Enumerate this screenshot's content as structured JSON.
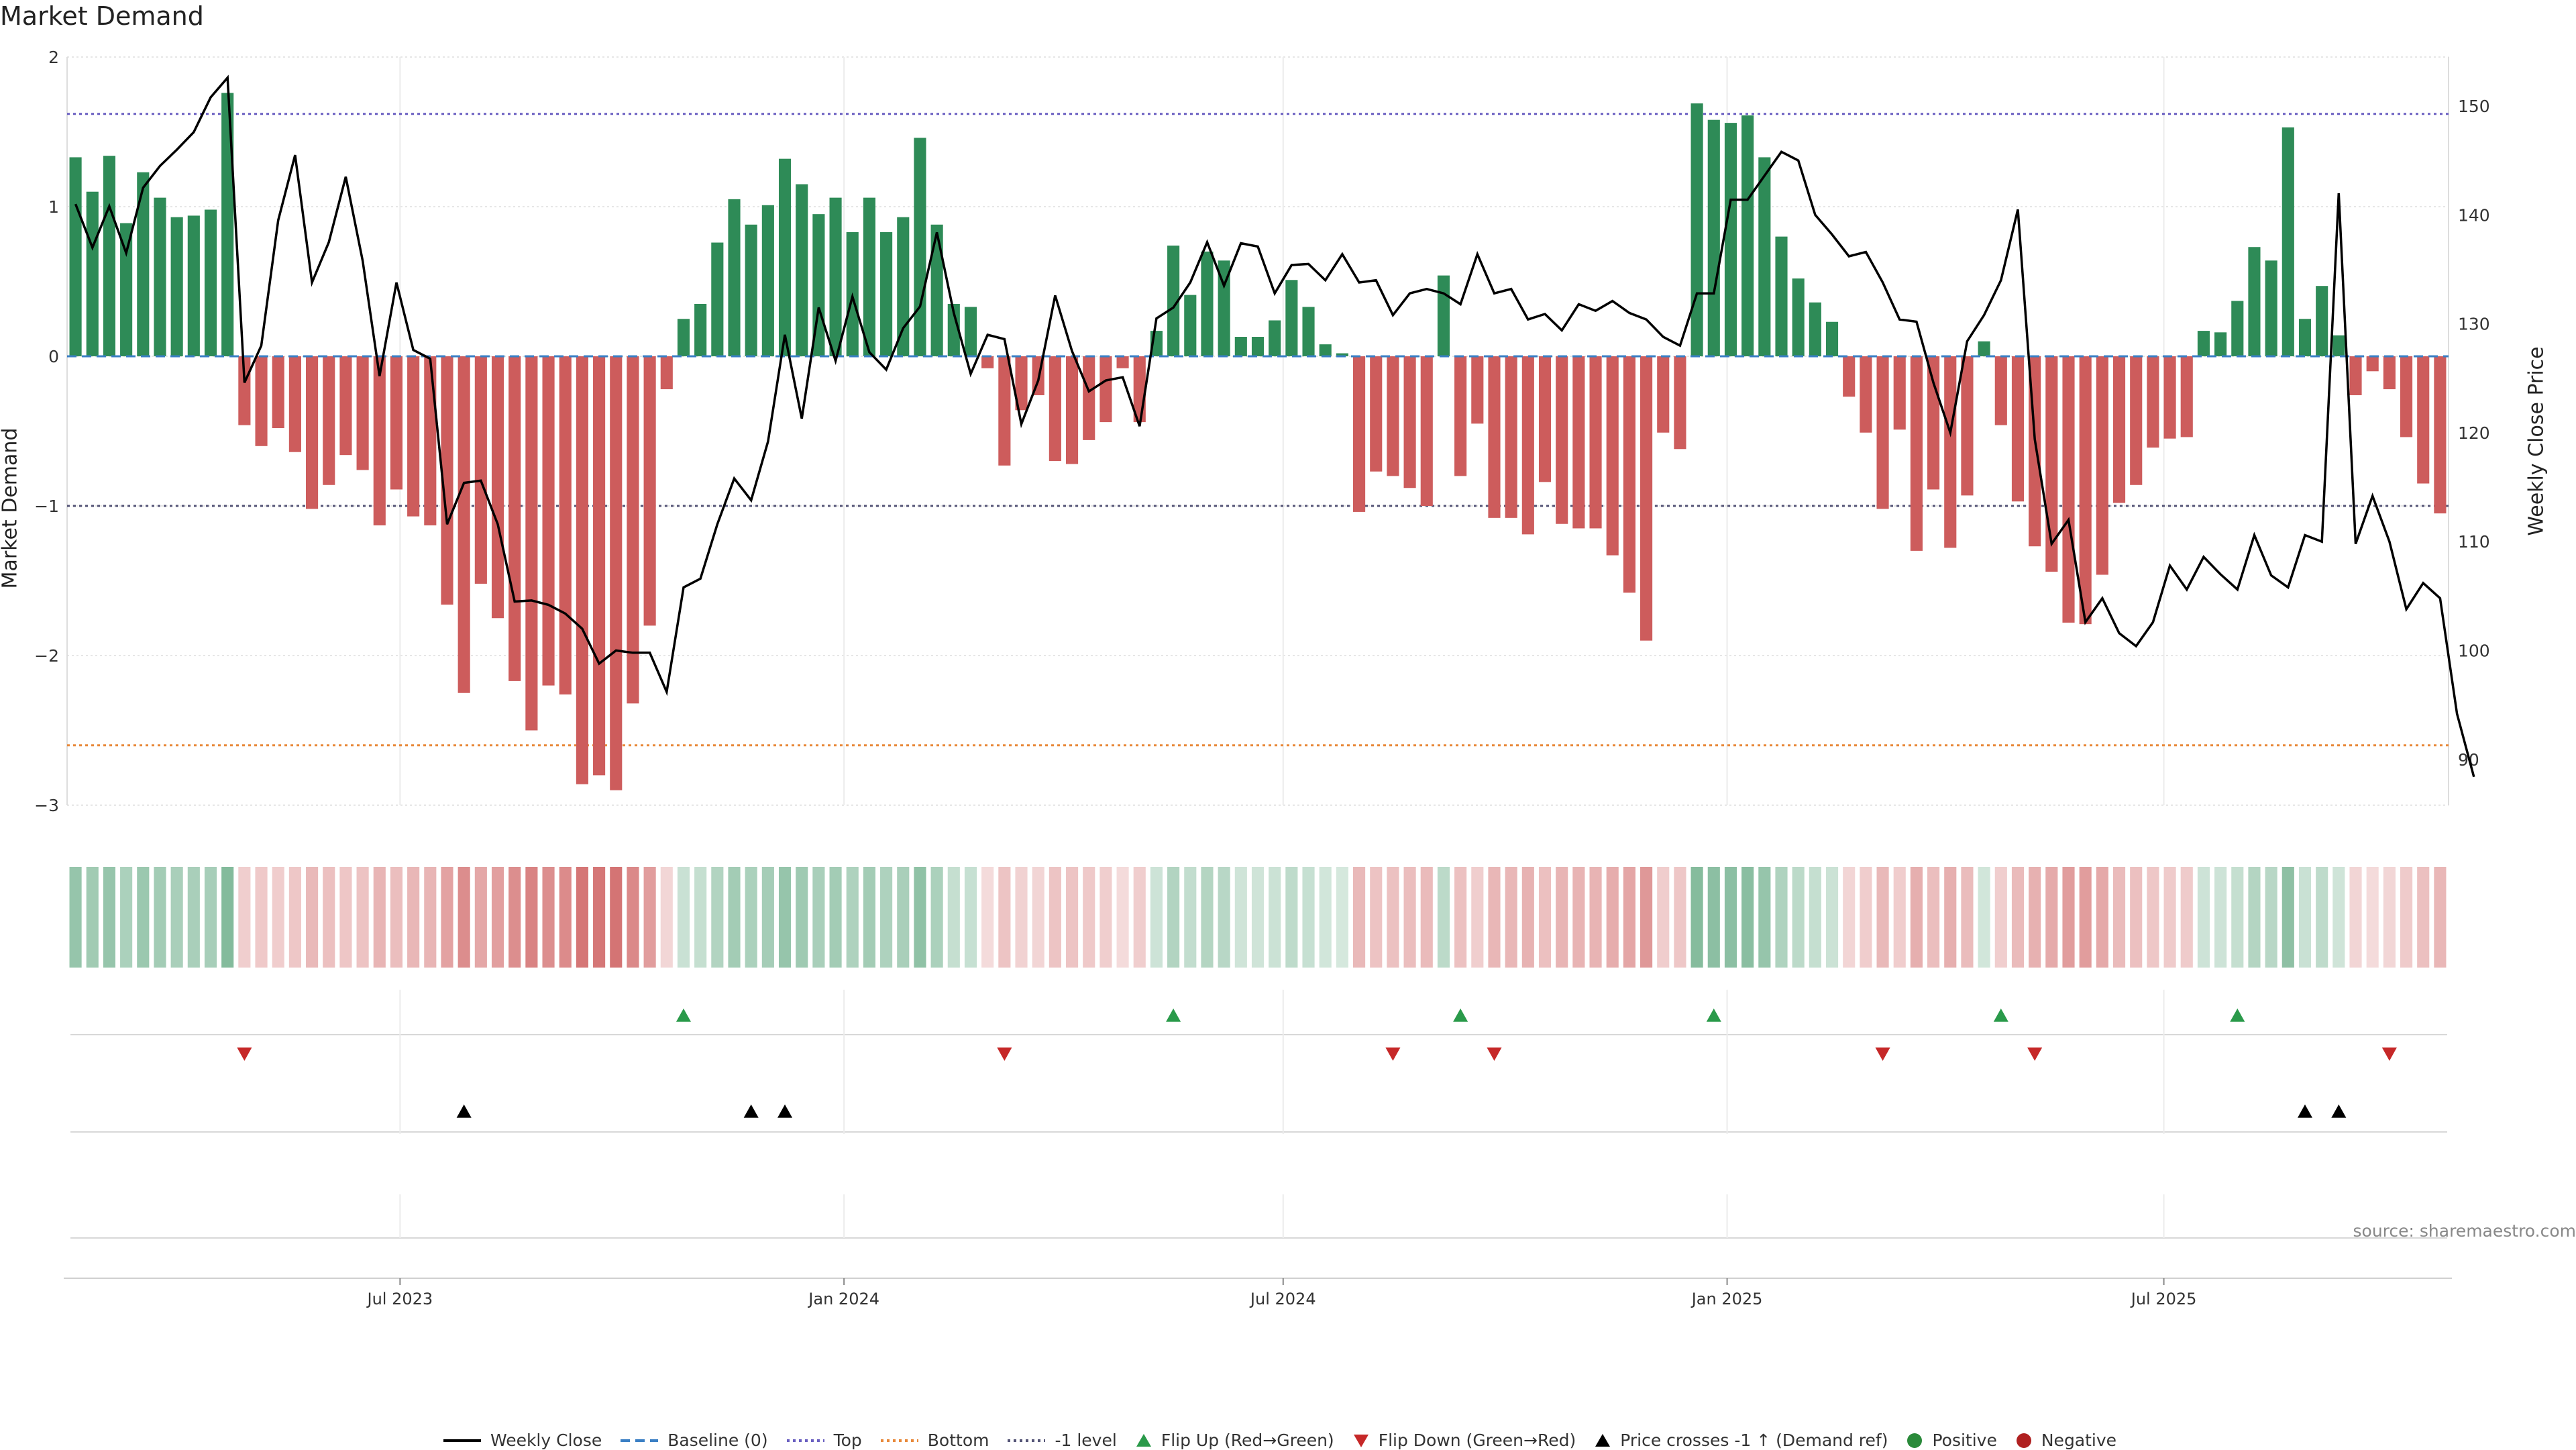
{
  "title": "Market Demand",
  "source_label": "source: sharemaestro.com",
  "legend": [
    {
      "label": "Weekly Close",
      "kind": "line",
      "color": "#000000"
    },
    {
      "label": "Baseline (0)",
      "kind": "dash",
      "color": "#3a7fc4"
    },
    {
      "label": "Top",
      "kind": "dot",
      "color": "#6a5fc1"
    },
    {
      "label": "Bottom",
      "kind": "dot",
      "color": "#e8893a"
    },
    {
      "label": "-1 level",
      "kind": "dot",
      "color": "#555577"
    },
    {
      "label": "Flip Up (Red→Green)",
      "kind": "tri-up",
      "color": "#2a9a4a"
    },
    {
      "label": "Flip Down (Green→Red)",
      "kind": "tri-down",
      "color": "#c62828"
    },
    {
      "label": "Price crosses -1 ↑ (Demand ref)",
      "kind": "tri-up",
      "color": "#000000"
    },
    {
      "label": "Positive",
      "kind": "circle",
      "color": "#2a8a3a"
    },
    {
      "label": "Negative",
      "kind": "circle",
      "color": "#b02020"
    }
  ],
  "colors": {
    "positive": "#2e8b57",
    "negative": "#cd5c5c",
    "close": "#000000"
  },
  "chart_data": {
    "type": "bar",
    "x_start": "2023-02-13",
    "x_step_days": 7,
    "x_ticks": [
      "Jul 2023",
      "Jan 2024",
      "Jul 2024",
      "Jan 2025",
      "Jul 2025"
    ],
    "x_tick_dates": [
      "2023-07-01",
      "2024-01-01",
      "2024-07-01",
      "2025-01-01",
      "2025-07-01"
    ],
    "left_axis": {
      "label": "Market Demand",
      "ylim": [
        -3,
        2
      ],
      "ticks": [
        -3,
        -2,
        -1,
        0,
        1,
        2
      ],
      "tick_labels": [
        "−3",
        "−2",
        "−1",
        "0",
        "1",
        "2"
      ]
    },
    "right_axis": {
      "label": "Weekly Close Price",
      "ylim": [
        85.8,
        154.5
      ],
      "ticks": [
        90,
        100,
        110,
        120,
        130,
        140,
        150
      ]
    },
    "reference_lines": {
      "top": 1.62,
      "bottom": -2.6,
      "minus_one": -1,
      "baseline": 0
    },
    "series": [
      {
        "name": "Market Demand",
        "values": [
          1.33,
          1.1,
          1.34,
          0.89,
          1.23,
          1.06,
          0.93,
          0.94,
          0.98,
          1.76,
          -0.46,
          -0.6,
          -0.48,
          -0.64,
          -1.02,
          -0.86,
          -0.66,
          -0.76,
          -1.13,
          -0.89,
          -1.07,
          -1.13,
          -1.66,
          -2.25,
          -1.52,
          -1.75,
          -2.17,
          -2.5,
          -2.2,
          -2.26,
          -2.86,
          -2.8,
          -2.9,
          -2.32,
          -1.8,
          -0.22,
          0.25,
          0.35,
          0.76,
          1.05,
          0.88,
          1.01,
          1.32,
          1.15,
          0.95,
          1.06,
          0.83,
          1.06,
          0.83,
          0.93,
          1.46,
          0.88,
          0.35,
          0.33,
          -0.08,
          -0.73,
          -0.36,
          -0.26,
          -0.7,
          -0.72,
          -0.56,
          -0.44,
          -0.08,
          -0.44,
          0.17,
          0.74,
          0.41,
          0.7,
          0.64,
          0.13,
          0.13,
          0.24,
          0.51,
          0.33,
          0.08,
          0.02,
          -1.04,
          -0.77,
          -0.8,
          -0.88,
          -1.0,
          0.54,
          -0.8,
          -0.45,
          -1.08,
          -1.08,
          -1.19,
          -0.84,
          -1.12,
          -1.15,
          -1.15,
          -1.33,
          -1.58,
          -1.9,
          -0.51,
          -0.62,
          1.69,
          1.58,
          1.56,
          1.61,
          1.33,
          0.8,
          0.52,
          0.36,
          0.23,
          -0.27,
          -0.51,
          -1.02,
          -0.49,
          -1.3,
          -0.89,
          -1.28,
          -0.93,
          0.1,
          -0.46,
          -0.97,
          -1.27,
          -1.44,
          -1.78,
          -1.79,
          -1.46,
          -0.98,
          -0.86,
          -0.61,
          -0.55,
          -0.54,
          0.17,
          0.16,
          0.37,
          0.73,
          0.64,
          1.53,
          0.25,
          0.47,
          0.14,
          -0.26,
          -0.1,
          -0.22,
          -0.54,
          -0.85,
          -1.05
        ]
      },
      {
        "name": "Weekly Close",
        "values": [
          141.0,
          137.0,
          140.8,
          136.5,
          142.5,
          144.5,
          146.0,
          147.6,
          150.8,
          152.6,
          124.6,
          128.0,
          139.5,
          145.5,
          133.8,
          137.5,
          143.5,
          135.8,
          125.2,
          133.8,
          127.6,
          126.8,
          111.6,
          115.4,
          115.6,
          111.6,
          104.5,
          104.6,
          104.2,
          103.4,
          102.0,
          98.8,
          100.0,
          99.8,
          99.8,
          96.2,
          105.8,
          106.6,
          111.6,
          115.8,
          113.8,
          119.2,
          129.0,
          121.3,
          131.5,
          126.6,
          132.5,
          127.4,
          125.8,
          129.6,
          131.6,
          138.4,
          131.0,
          125.4,
          129.0,
          128.6,
          120.8,
          124.8,
          132.6,
          127.5,
          123.8,
          124.8,
          125.1,
          120.6,
          130.5,
          131.5,
          133.8,
          137.5,
          133.5,
          137.4,
          137.1,
          132.8,
          135.4,
          135.5,
          134.0,
          136.4,
          133.8,
          134.0,
          130.8,
          132.8,
          133.2,
          132.8,
          131.8,
          136.4,
          132.8,
          133.2,
          130.4,
          130.9,
          129.4,
          131.8,
          131.2,
          132.1,
          131.0,
          130.4,
          128.8,
          128.0,
          132.8,
          132.8,
          141.4,
          141.4,
          143.6,
          145.8,
          145.0,
          140.0,
          138.2,
          136.2,
          136.6,
          133.8,
          130.4,
          130.2,
          124.6,
          120.0,
          128.4,
          130.8,
          134.0,
          140.5,
          119.4,
          109.8,
          112.0,
          102.6,
          104.8,
          101.6,
          100.4,
          102.6,
          107.8,
          105.6,
          108.6,
          107.0,
          105.6,
          110.6,
          106.9,
          105.8,
          110.6,
          110.0,
          142.0,
          109.8,
          114.2,
          110.0,
          103.8,
          106.2,
          104.8,
          94.2,
          88.4
        ]
      }
    ],
    "heat_strip": "color intensity by market demand",
    "flip_up_weeks": [
      36,
      65,
      82,
      97,
      114,
      128
    ],
    "flip_down_weeks": [
      10,
      55,
      78,
      84,
      107,
      116,
      137
    ],
    "price_cross_weeks": [
      23,
      40,
      42,
      132,
      134
    ]
  }
}
